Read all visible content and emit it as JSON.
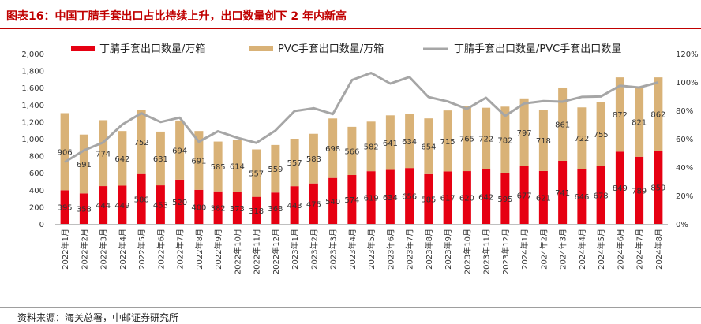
{
  "header": {
    "title": "图表16：中国丁腈手套出口占比持续上升，出口数量创下 2 年内新高"
  },
  "source": {
    "text": "资料来源：海关总署，中邮证券研究所"
  },
  "chart_data": {
    "type": "bar",
    "stacked": true,
    "categories": [
      "2022年1月",
      "2022年2月",
      "2022年3月",
      "2022年4月",
      "2022年5月",
      "2022年6月",
      "2022年7月",
      "2022年8月",
      "2022年9月",
      "2022年10月",
      "2022年11月",
      "2022年12月",
      "2023年1月",
      "2023年2月",
      "2023年3月",
      "2023年4月",
      "2023年5月",
      "2023年6月",
      "2023年7月",
      "2023年8月",
      "2023年9月",
      "2023年10月",
      "2023年11月",
      "2023年12月",
      "2024年1月",
      "2024年2月",
      "2024年3月",
      "2024年4月",
      "2024年5月",
      "2024年6月",
      "2024年7月",
      "2024年8月"
    ],
    "series": [
      {
        "name": "丁腈手套出口数量/万箱",
        "axis": "left",
        "color": "#e60012",
        "values": [
          395,
          358,
          444,
          449,
          586,
          453,
          520,
          400,
          382,
          373,
          318,
          368,
          443,
          475,
          540,
          574,
          619,
          634,
          656,
          585,
          617,
          620,
          642,
          595,
          677,
          621,
          741,
          646,
          678,
          849,
          789,
          859
        ],
        "labels": [
          "395",
          "358",
          "444",
          "449",
          "586",
          "453",
          "520",
          "400",
          "382",
          "373",
          "318",
          "368",
          "443",
          "475",
          "540",
          "574",
          "619",
          "634",
          "656",
          "585",
          "617",
          "620",
          "642",
          "595",
          "677",
          "621",
          "741",
          "646",
          "678",
          "849",
          "789",
          "859"
        ]
      },
      {
        "name": "PVC手套出口数量/万箱",
        "axis": "left",
        "color": "#d9b277",
        "values": [
          906,
          691,
          774,
          642,
          752,
          631,
          694,
          691,
          585,
          614,
          557,
          559,
          557,
          583,
          698,
          566,
          582,
          641,
          634,
          654,
          715,
          765,
          722,
          782,
          797,
          718,
          861,
          722,
          755,
          872,
          821,
          862
        ],
        "labels": [
          "906",
          "691",
          "774",
          "642",
          "752",
          "631",
          "694",
          "691",
          "585",
          "614",
          "557",
          "559",
          "557",
          "583",
          "698",
          "566",
          "582",
          "641",
          "634",
          "654",
          "715",
          "765",
          "722",
          "782",
          "797",
          "718",
          "861",
          "722",
          "755",
          "872",
          "821",
          "862"
        ]
      },
      {
        "name": "丁腈手套出口数量/PVC手套出口数量",
        "axis": "right",
        "type": "line",
        "color": "#a6a6a6",
        "values": [
          43.6,
          51.8,
          57.4,
          70,
          78,
          71.8,
          74.9,
          57.9,
          65.3,
          60.7,
          57.1,
          65.8,
          79.5,
          81.5,
          77.4,
          101.4,
          106.4,
          98.9,
          103.5,
          89.4,
          86.3,
          81,
          88.9,
          76.1,
          84.9,
          86.5,
          86.1,
          89.5,
          89.8,
          97.4,
          96.1,
          99.7
        ]
      }
    ],
    "y_left": {
      "min": 0,
      "max": 2000,
      "step": 200,
      "ticks": [
        "0",
        "200",
        "400",
        "600",
        "800",
        "1,000",
        "1,200",
        "1,400",
        "1,600",
        "1,800",
        "2,000"
      ]
    },
    "y_right": {
      "min": 0,
      "max": 120,
      "step": 20,
      "ticks": [
        "0%",
        "20%",
        "40%",
        "60%",
        "80%",
        "100%",
        "120%"
      ]
    },
    "legend_position": "top",
    "grid": false
  }
}
